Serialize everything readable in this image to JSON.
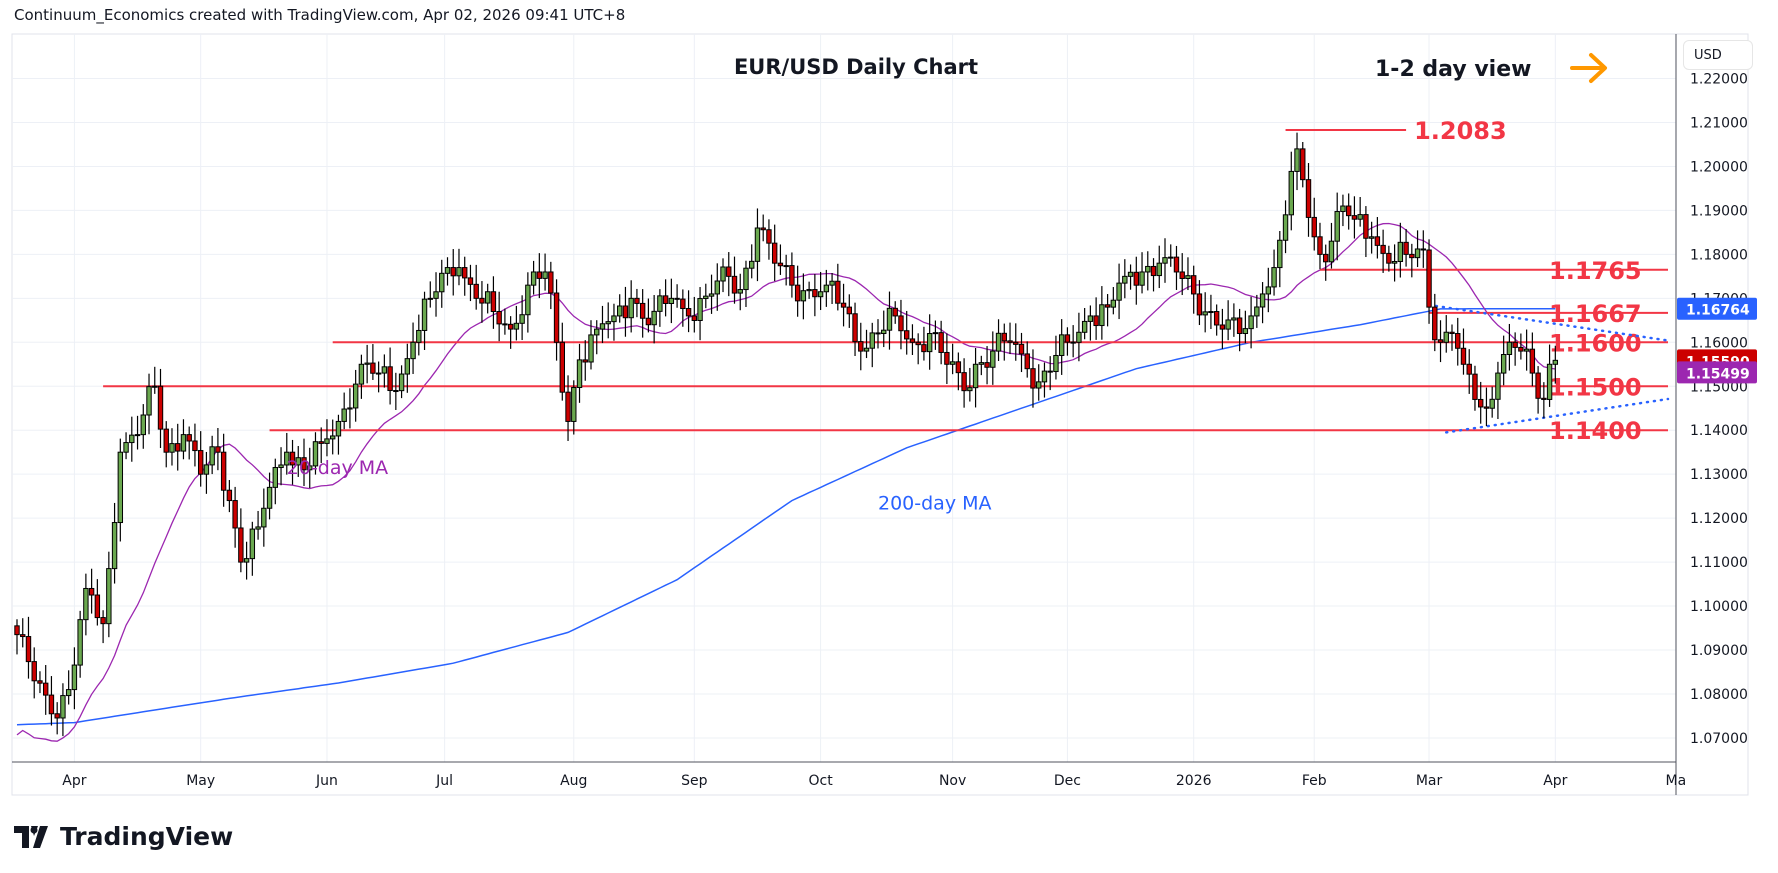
{
  "header": {
    "attribution": "Continuum_Economics created with TradingView.com, Apr 02, 2026 09:41 UTC+8"
  },
  "logo": {
    "text": "TradingView"
  },
  "axis": {
    "currency_button": "USD"
  },
  "chart_data": {
    "type": "candlestick",
    "title": "EUR/USD Daily Chart",
    "subtitle": "1-2 day view",
    "view_icon": "arrow-right-icon",
    "ylim": [
      1.065,
      1.225
    ],
    "y_ticks": [
      "1.22000",
      "1.21000",
      "1.20000",
      "1.19000",
      "1.18000",
      "1.17000",
      "1.16000",
      "1.15000",
      "1.14000",
      "1.13000",
      "1.12000",
      "1.11000",
      "1.10000",
      "1.09000",
      "1.08000",
      "1.07000"
    ],
    "x_ticks": [
      {
        "label": "Apr",
        "t": 10
      },
      {
        "label": "May",
        "t": 32
      },
      {
        "label": "Jun",
        "t": 54
      },
      {
        "label": "Jul",
        "t": 74.5
      },
      {
        "label": "Aug",
        "t": 97
      },
      {
        "label": "Sep",
        "t": 118
      },
      {
        "label": "Oct",
        "t": 140
      },
      {
        "label": "Nov",
        "t": 163
      },
      {
        "label": "Dec",
        "t": 183
      },
      {
        "label": "2026",
        "t": 205
      },
      {
        "label": "Feb",
        "t": 226
      },
      {
        "label": "Mar",
        "t": 246
      },
      {
        "label": "Apr",
        "t": 268
      },
      {
        "label": "Ma",
        "t": 289
      }
    ],
    "x_unit": "trading days since start",
    "close_waypoints": [
      [
        0,
        1.0935
      ],
      [
        3,
        1.083
      ],
      [
        6,
        1.0755
      ],
      [
        9,
        1.081
      ],
      [
        12,
        1.104
      ],
      [
        15,
        1.096
      ],
      [
        17,
        1.119
      ],
      [
        18,
        1.135
      ],
      [
        21,
        1.139
      ],
      [
        24,
        1.15
      ],
      [
        26,
        1.135
      ],
      [
        29,
        1.139
      ],
      [
        32,
        1.13
      ],
      [
        35,
        1.135
      ],
      [
        37,
        1.124
      ],
      [
        39,
        1.11
      ],
      [
        42,
        1.118
      ],
      [
        44,
        1.127
      ],
      [
        47,
        1.135
      ],
      [
        50,
        1.131
      ],
      [
        53,
        1.137
      ],
      [
        56,
        1.142
      ],
      [
        60,
        1.155
      ],
      [
        63,
        1.153
      ],
      [
        66,
        1.149
      ],
      [
        69,
        1.16
      ],
      [
        72,
        1.17
      ],
      [
        75,
        1.177
      ],
      [
        77,
        1.177
      ],
      [
        80,
        1.17
      ],
      [
        83,
        1.167
      ],
      [
        86,
        1.163
      ],
      [
        89,
        1.173
      ],
      [
        92,
        1.176
      ],
      [
        94,
        1.16
      ],
      [
        96,
        1.142
      ],
      [
        98,
        1.156
      ],
      [
        101,
        1.163
      ],
      [
        104,
        1.166
      ],
      [
        107,
        1.17
      ],
      [
        110,
        1.164
      ],
      [
        114,
        1.17
      ],
      [
        117,
        1.166
      ],
      [
        121,
        1.171
      ],
      [
        124,
        1.175
      ],
      [
        126,
        1.172
      ],
      [
        129,
        1.186
      ],
      [
        132,
        1.178
      ],
      [
        135,
        1.173
      ],
      [
        138,
        1.172
      ],
      [
        141,
        1.173
      ],
      [
        144,
        1.168
      ],
      [
        147,
        1.158
      ],
      [
        150,
        1.162
      ],
      [
        153,
        1.166
      ],
      [
        156,
        1.16
      ],
      [
        159,
        1.162
      ],
      [
        162,
        1.155
      ],
      [
        165,
        1.149
      ],
      [
        167,
        1.155
      ],
      [
        170,
        1.158
      ],
      [
        173,
        1.16
      ],
      [
        176,
        1.154
      ],
      [
        178,
        1.151
      ],
      [
        181,
        1.157
      ],
      [
        184,
        1.16
      ],
      [
        187,
        1.166
      ],
      [
        190,
        1.168
      ],
      [
        193,
        1.175
      ],
      [
        196,
        1.176
      ],
      [
        199,
        1.178
      ],
      [
        202,
        1.176
      ],
      [
        205,
        1.171
      ],
      [
        208,
        1.167
      ],
      [
        210,
        1.163
      ],
      [
        213,
        1.162
      ],
      [
        215,
        1.166
      ],
      [
        217,
        1.171
      ],
      [
        219,
        1.177
      ],
      [
        221,
        1.189
      ],
      [
        223,
        1.204
      ],
      [
        224,
        1.197
      ],
      [
        226,
        1.184
      ],
      [
        227,
        1.18
      ],
      [
        229,
        1.183
      ],
      [
        231,
        1.191
      ],
      [
        233,
        1.188
      ],
      [
        236,
        1.184
      ],
      [
        239,
        1.178
      ],
      [
        242,
        1.18
      ],
      [
        245,
        1.181
      ],
      [
        246,
        1.168
      ],
      [
        248,
        1.16
      ],
      [
        250,
        1.162
      ],
      [
        252,
        1.155
      ],
      [
        254,
        1.147
      ],
      [
        256,
        1.145
      ],
      [
        258,
        1.153
      ],
      [
        260,
        1.16
      ],
      [
        262,
        1.158
      ],
      [
        264,
        1.153
      ],
      [
        266,
        1.147
      ],
      [
        267,
        1.155
      ],
      [
        268,
        1.1559
      ]
    ],
    "ma200_waypoints": [
      [
        0,
        1.073
      ],
      [
        10,
        1.0735
      ],
      [
        37,
        1.079
      ],
      [
        56,
        1.0825
      ],
      [
        76,
        1.087
      ],
      [
        96,
        1.094
      ],
      [
        115,
        1.106
      ],
      [
        135,
        1.124
      ],
      [
        155,
        1.136
      ],
      [
        175,
        1.145
      ],
      [
        195,
        1.154
      ],
      [
        215,
        1.16
      ],
      [
        234,
        1.164
      ],
      [
        248,
        1.1676
      ],
      [
        268,
        1.16764
      ]
    ],
    "series": [
      {
        "name": "EUR/USD",
        "color": "#cc0000",
        "last": "1.15590"
      },
      {
        "name": "20-day MA",
        "color": "#9c27b0",
        "last": "1.15499"
      },
      {
        "name": "200-day MA",
        "color": "#2962ff",
        "last": "1.16764"
      }
    ],
    "levels": [
      {
        "label": "1.2083",
        "value": 1.2083,
        "t_from": 221,
        "t_to": 242
      },
      {
        "label": "1.1765",
        "value": 1.1765,
        "t_from": 227,
        "t_to": 289
      },
      {
        "label": "1.1667",
        "value": 1.1667,
        "t_from": 246,
        "t_to": 289
      },
      {
        "label": "1.1600",
        "value": 1.16,
        "t_from": 55,
        "t_to": 289
      },
      {
        "label": "1.1500",
        "value": 1.15,
        "t_from": 15,
        "t_to": 289
      },
      {
        "label": "1.1400",
        "value": 1.14,
        "t_from": 44,
        "t_to": 289
      }
    ],
    "trendlines": [
      {
        "name": "upper",
        "from": [
          246,
          1.1685
        ],
        "to": [
          289,
          1.1604
        ]
      },
      {
        "name": "lower",
        "from": [
          249,
          1.1395
        ],
        "to": [
          289,
          1.1471
        ]
      }
    ],
    "annotations": [
      {
        "text": "20-day MA",
        "t": 47,
        "price": 1.13,
        "color": "#9c27b0"
      },
      {
        "text": "200-day MA",
        "t": 150,
        "price": 1.122,
        "color": "#2962ff"
      }
    ],
    "colors": {
      "up": "#6aa84f",
      "down": "#cc0000",
      "level": "#f23645",
      "accent": "#ff9800"
    }
  }
}
